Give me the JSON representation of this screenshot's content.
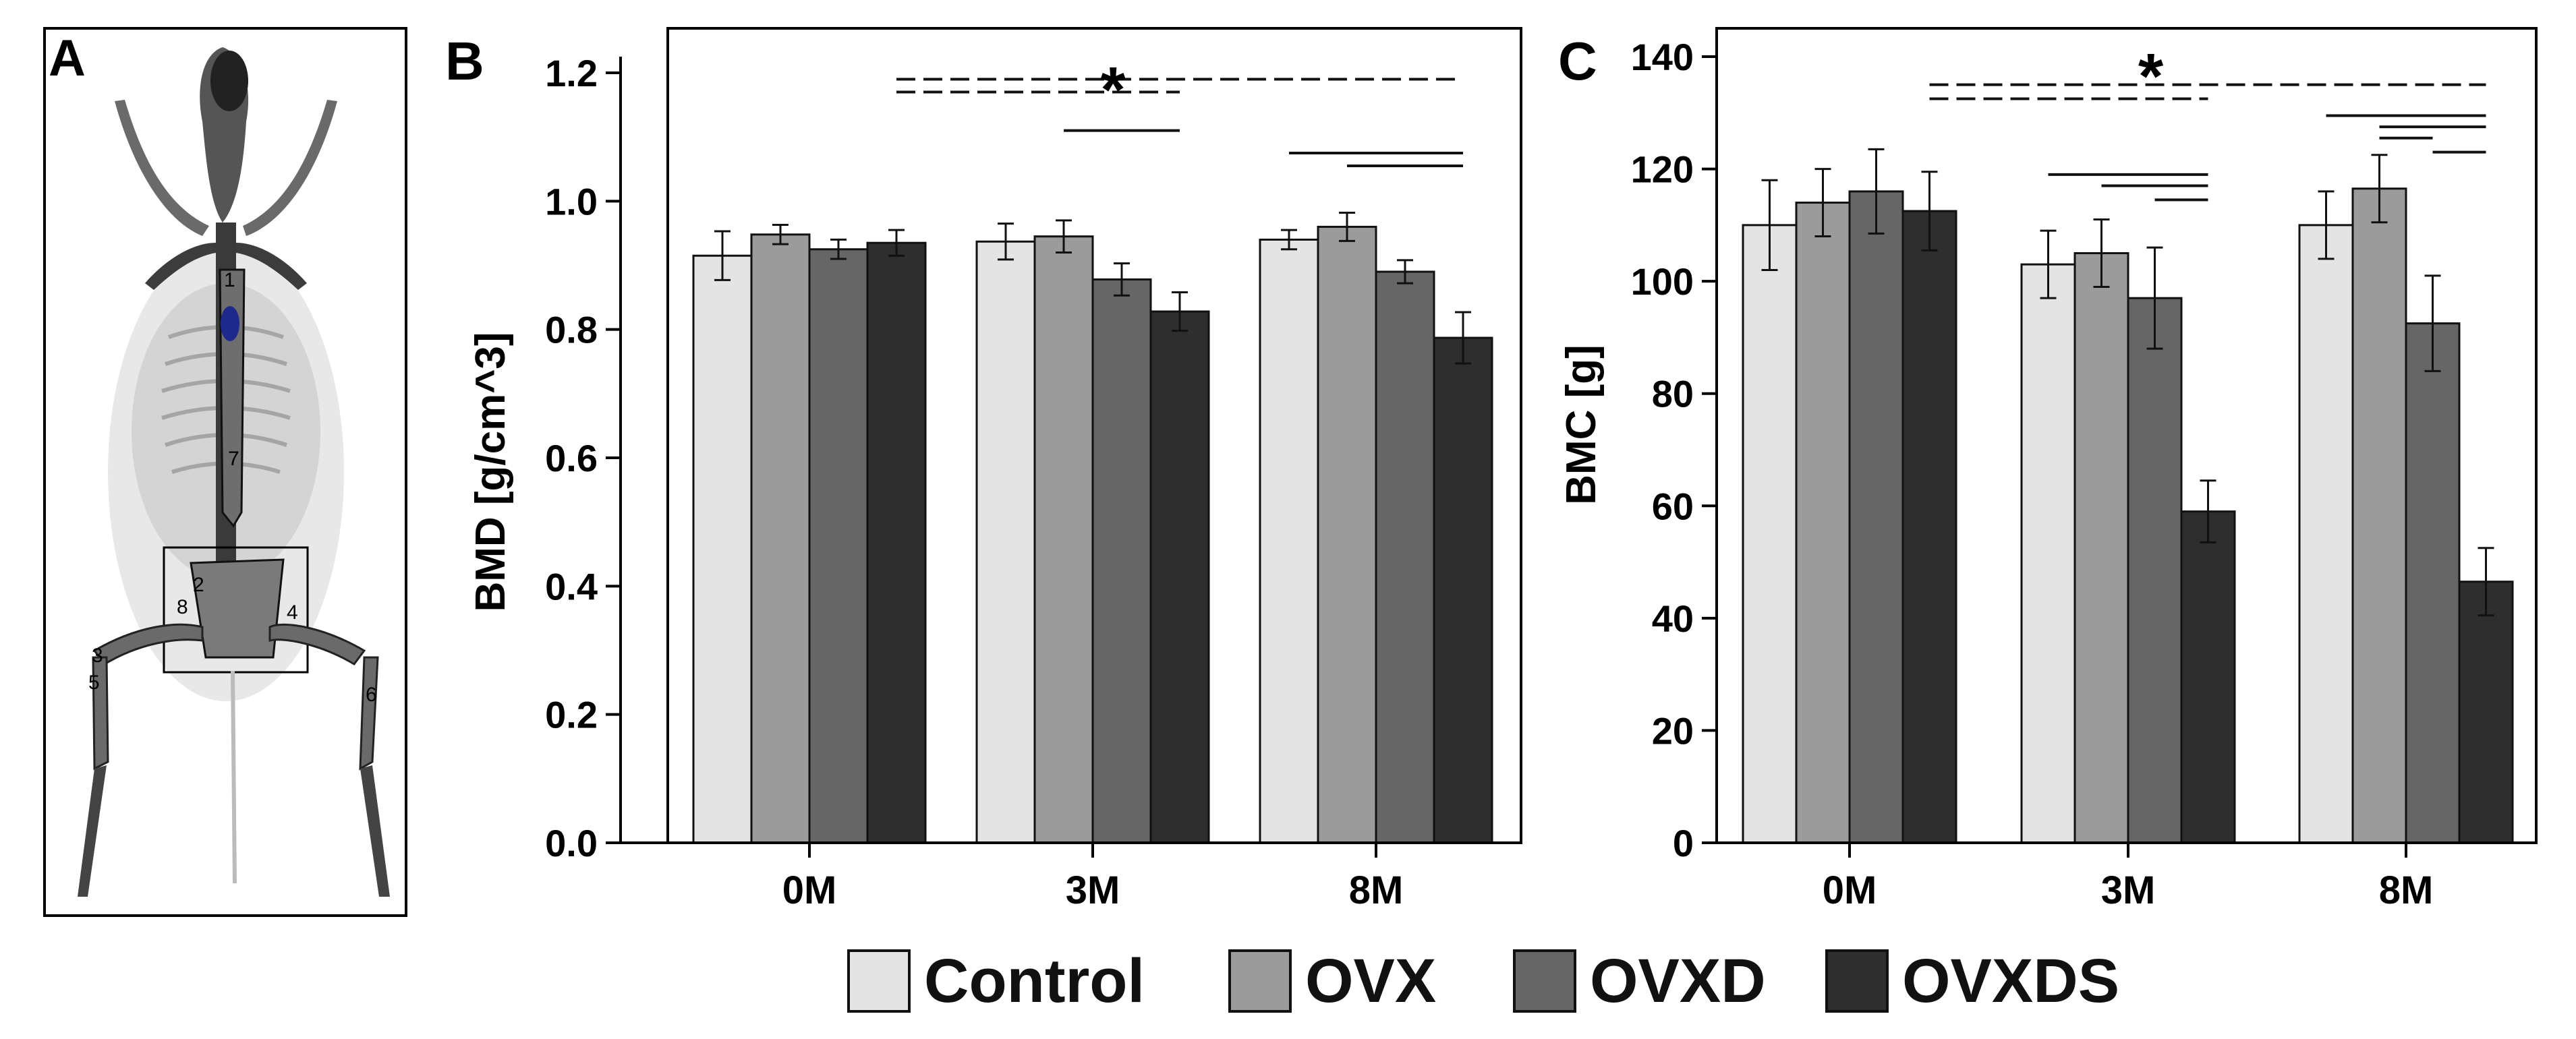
{
  "panel_letters": {
    "a": "A",
    "b": "B",
    "c": "C"
  },
  "image_panel": {
    "roi_labels": [
      "1",
      "2",
      "3",
      "4",
      "5",
      "6",
      "7",
      "8"
    ],
    "roi_color": "#1d2a8c"
  },
  "significance_symbol": "*",
  "colors": {
    "Control": "#e4e4e4",
    "OVX": "#9b9b9b",
    "OVXD": "#666666",
    "OVXDS": "#2e2e2e",
    "axis": "#000000"
  },
  "legend": {
    "items": [
      {
        "label": "Control",
        "color": "#e4e4e4"
      },
      {
        "label": "OVX",
        "color": "#9b9b9b"
      },
      {
        "label": "OVXD",
        "color": "#666666"
      },
      {
        "label": "OVXDS",
        "color": "#2e2e2e"
      }
    ]
  },
  "chart_data": [
    {
      "panel": "B",
      "type": "bar",
      "ylabel": "BMD [g/cm^3]",
      "xlabel": "",
      "categories": [
        "0M",
        "3M",
        "8M"
      ],
      "ylim": [
        0,
        1.2
      ],
      "yticks": [
        0.0,
        0.2,
        0.4,
        0.6,
        0.8,
        1.0,
        1.2
      ],
      "ytick_labels": [
        "0.0",
        "0.2",
        "0.4",
        "0.6",
        "0.8",
        "1.0",
        "1.2"
      ],
      "series": [
        {
          "name": "Control",
          "values": [
            0.915,
            0.937,
            0.94
          ],
          "errors": [
            0.038,
            0.028,
            0.015
          ]
        },
        {
          "name": "OVX",
          "values": [
            0.948,
            0.945,
            0.96
          ],
          "errors": [
            0.015,
            0.025,
            0.022
          ]
        },
        {
          "name": "OVXD",
          "values": [
            0.925,
            0.878,
            0.89
          ],
          "errors": [
            0.015,
            0.025,
            0.018
          ]
        },
        {
          "name": "OVXDS",
          "values": [
            0.935,
            0.828,
            0.787
          ],
          "errors": [
            0.02,
            0.03,
            0.04
          ]
        }
      ],
      "annotations": {
        "dashed": [
          {
            "from": "0M:OVXDS",
            "to": "8M:OVXDS",
            "y": 1.19
          },
          {
            "from": "0M:OVXDS",
            "to": "3M:OVXDS",
            "y": 1.17
          }
        ],
        "solid": [
          {
            "from": "3M:OVX",
            "to": "3M:OVXDS",
            "y": 1.11
          },
          {
            "from": "8M:Control",
            "to": "8M:OVXDS",
            "y": 1.075
          },
          {
            "from": "8M:OVX",
            "to": "8M:OVXDS",
            "y": 1.055
          }
        ],
        "star": {
          "category_between": [
            "0M",
            "3M"
          ],
          "y": 1.2
        }
      }
    },
    {
      "panel": "C",
      "type": "bar",
      "ylabel": "BMC [g]",
      "xlabel": "",
      "categories": [
        "0M",
        "3M",
        "8M"
      ],
      "ylim": [
        0,
        140
      ],
      "yticks": [
        0,
        20,
        40,
        60,
        80,
        100,
        120,
        140
      ],
      "ytick_labels": [
        "0",
        "20",
        "40",
        "60",
        "80",
        "100",
        "120",
        "140"
      ],
      "series": [
        {
          "name": "Control",
          "values": [
            110,
            103,
            110
          ],
          "errors": [
            8,
            6,
            6
          ]
        },
        {
          "name": "OVX",
          "values": [
            114,
            105,
            116.5
          ],
          "errors": [
            6,
            6,
            6
          ]
        },
        {
          "name": "OVXD",
          "values": [
            116,
            97,
            92.5
          ],
          "errors": [
            7.5,
            9,
            8.5
          ]
        },
        {
          "name": "OVXDS",
          "values": [
            112.5,
            59,
            46.5
          ],
          "errors": [
            7,
            5.5,
            6
          ]
        }
      ],
      "annotations": {
        "dashed": [
          {
            "from": "0M:OVXDS",
            "to": "8M:OVXDS",
            "y": 135
          },
          {
            "from": "0M:OVXDS",
            "to": "3M:OVXDS",
            "y": 132.5
          }
        ],
        "solid": [
          {
            "from": "3M:Control",
            "to": "3M:OVXDS",
            "y": 119
          },
          {
            "from": "3M:OVX",
            "to": "3M:OVXDS",
            "y": 117
          },
          {
            "from": "3M:OVXD",
            "to": "3M:OVXDS",
            "y": 114.5
          },
          {
            "from": "8M:Control",
            "to": "8M:OVXDS",
            "y": 129.5
          },
          {
            "from": "8M:OVX",
            "to": "8M:OVXDS",
            "y": 127.5
          },
          {
            "from": "8M:OVX",
            "to": "8M:OVXD",
            "y": 125.5
          },
          {
            "from": "8M:OVXD",
            "to": "8M:OVXDS",
            "y": 123
          }
        ],
        "star": {
          "category_between": [
            "0M",
            "3M"
          ],
          "y": 139.5
        }
      }
    }
  ]
}
